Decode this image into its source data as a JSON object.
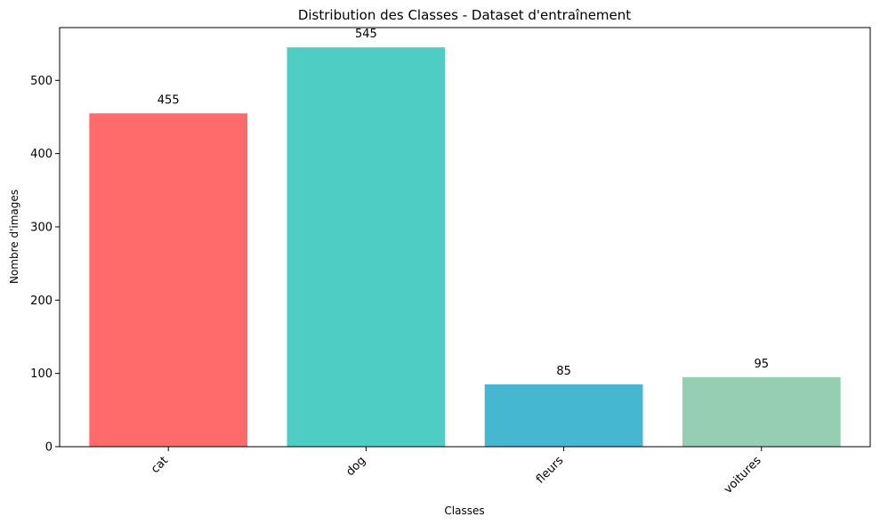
{
  "chart_data": {
    "type": "bar",
    "title": "Distribution des Classes - Dataset d'entraînement",
    "xlabel": "Classes",
    "ylabel": "Nombre d'images",
    "categories": [
      "cat",
      "dog",
      "fleurs",
      "voitures"
    ],
    "values": [
      455,
      545,
      85,
      95
    ],
    "colors": [
      "#FF6B6B",
      "#4ECDC4",
      "#45B7D1",
      "#96CEB4"
    ],
    "ylim": [
      0,
      572
    ],
    "yticks": [
      0,
      100,
      200,
      300,
      400,
      500
    ],
    "grid": false,
    "x_tick_rotation_deg": 45
  }
}
